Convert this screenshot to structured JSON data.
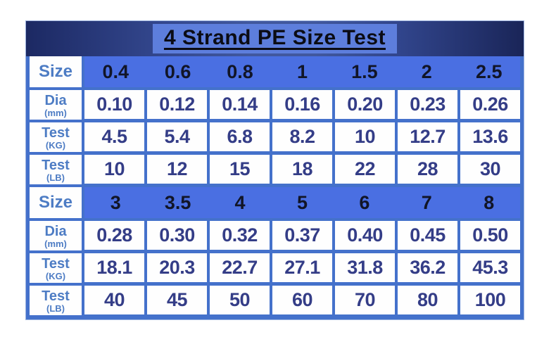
{
  "title": "4 Strand PE Size Test",
  "colors": {
    "page_background": "#ffffff",
    "table_border_blue": "#4471cb",
    "header_row_blue": "#4a6fe2",
    "title_bar_navy_edge": "#1c2963",
    "title_bar_navy_center": "#41589e",
    "title_highlight_blue": "#5d7edc",
    "title_text": "#0b0c14",
    "size_number_text": "#111527",
    "value_text": "#343d87",
    "row_label_text": "#4d7cc4",
    "cell_background": "#fefefe"
  },
  "table": {
    "sections": [
      {
        "size_label": "Size",
        "sizes": [
          "0.4",
          "0.6",
          "0.8",
          "1",
          "1.5",
          "2",
          "2.5"
        ],
        "rows": [
          {
            "label": "Dia",
            "sub": "(mm)",
            "values": [
              "0.10",
              "0.12",
              "0.14",
              "0.16",
              "0.20",
              "0.23",
              "0.26"
            ]
          },
          {
            "label": "Test",
            "sub": "(KG)",
            "values": [
              "4.5",
              "5.4",
              "6.8",
              "8.2",
              "10",
              "12.7",
              "13.6"
            ]
          },
          {
            "label": "Test",
            "sub": "(LB)",
            "values": [
              "10",
              "12",
              "15",
              "18",
              "22",
              "28",
              "30"
            ]
          }
        ]
      },
      {
        "size_label": "Size",
        "sizes": [
          "3",
          "3.5",
          "4",
          "5",
          "6",
          "7",
          "8"
        ],
        "rows": [
          {
            "label": "Dia",
            "sub": "(mm)",
            "values": [
              "0.28",
              "0.30",
              "0.32",
              "0.37",
              "0.40",
              "0.45",
              "0.50"
            ]
          },
          {
            "label": "Test",
            "sub": "(KG)",
            "values": [
              "18.1",
              "20.3",
              "22.7",
              "27.1",
              "31.8",
              "36.2",
              "45.3"
            ]
          },
          {
            "label": "Test",
            "sub": "(LB)",
            "values": [
              "40",
              "45",
              "50",
              "60",
              "70",
              "80",
              "100"
            ]
          }
        ]
      }
    ]
  },
  "chart_data": {
    "type": "table",
    "title": "4 Strand PE Size Test",
    "sections": [
      {
        "header_row": {
          "label": "Size",
          "values": [
            0.4,
            0.6,
            0.8,
            1,
            1.5,
            2,
            2.5
          ]
        },
        "rows": [
          {
            "label": "Dia (mm)",
            "values": [
              0.1,
              0.12,
              0.14,
              0.16,
              0.2,
              0.23,
              0.26
            ]
          },
          {
            "label": "Test (KG)",
            "values": [
              4.5,
              5.4,
              6.8,
              8.2,
              10,
              12.7,
              13.6
            ]
          },
          {
            "label": "Test (LB)",
            "values": [
              10,
              12,
              15,
              18,
              22,
              28,
              30
            ]
          }
        ]
      },
      {
        "header_row": {
          "label": "Size",
          "values": [
            3,
            3.5,
            4,
            5,
            6,
            7,
            8
          ]
        },
        "rows": [
          {
            "label": "Dia (mm)",
            "values": [
              0.28,
              0.3,
              0.32,
              0.37,
              0.4,
              0.45,
              0.5
            ]
          },
          {
            "label": "Test (KG)",
            "values": [
              18.1,
              20.3,
              22.7,
              27.1,
              31.8,
              36.2,
              45.3
            ]
          },
          {
            "label": "Test (LB)",
            "values": [
              40,
              45,
              50,
              60,
              70,
              80,
              100
            ]
          }
        ]
      }
    ]
  }
}
